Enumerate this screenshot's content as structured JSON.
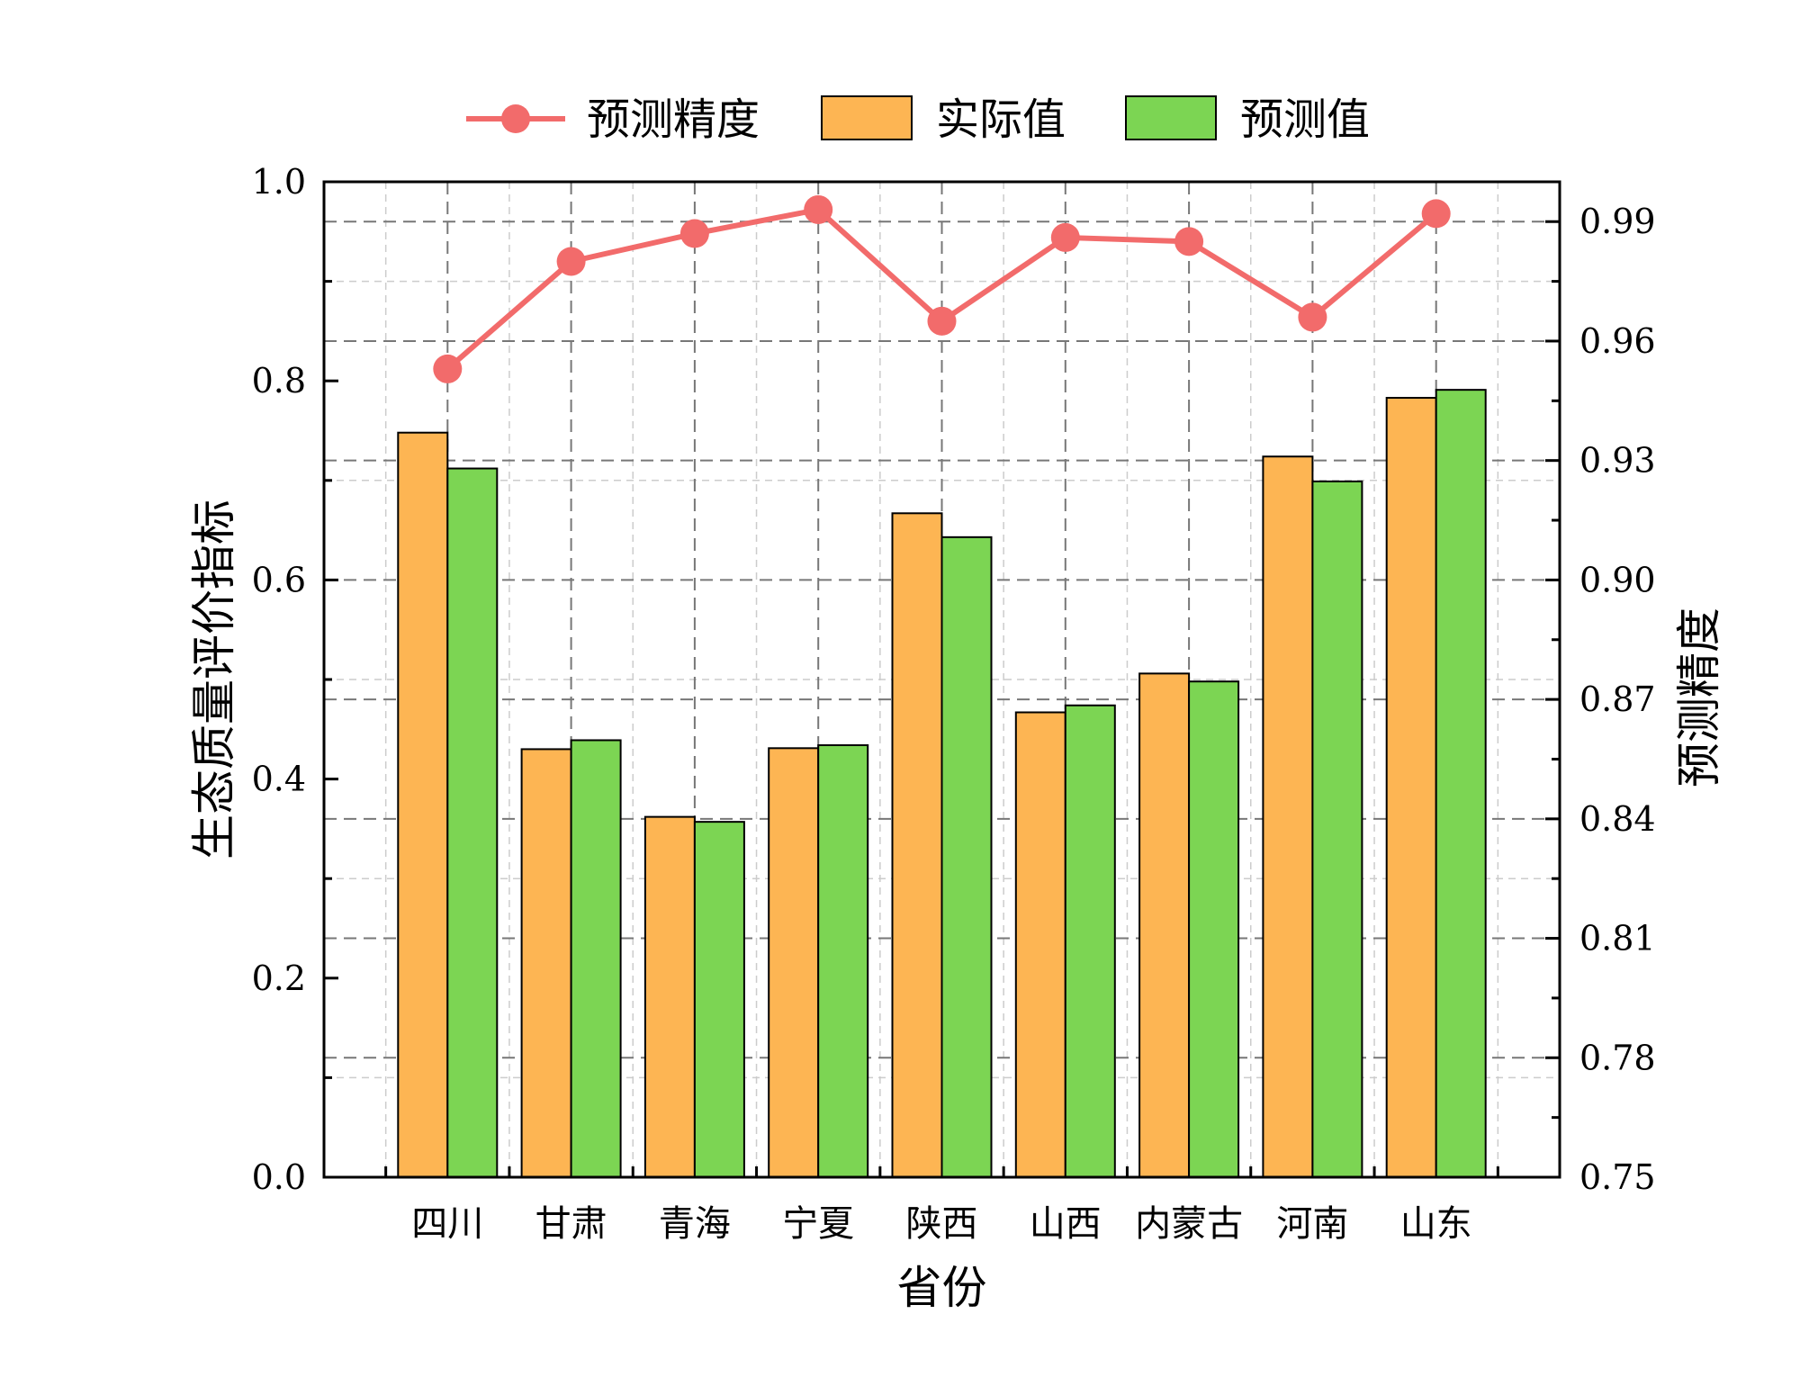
{
  "chart_data": {
    "type": "bar",
    "categories": [
      "四川",
      "甘肃",
      "青海",
      "宁夏",
      "陕西",
      "山西",
      "内蒙古",
      "河南",
      "山东"
    ],
    "xlabel": "省份",
    "ylabel": "生态质量评价指标",
    "y2label": "预测精度",
    "ylim": [
      0,
      1.0
    ],
    "y2lim": [
      0.75,
      1.0
    ],
    "yticks": [
      "0.0",
      "0.2",
      "0.4",
      "0.6",
      "0.8",
      "1.0"
    ],
    "y2ticks": [
      "0.75",
      "0.78",
      "0.81",
      "0.84",
      "0.87",
      "0.90",
      "0.93",
      "0.96",
      "0.99"
    ],
    "series": [
      {
        "name": "实际值",
        "kind": "bar",
        "color": "#FDB553",
        "values": [
          0.748,
          0.43,
          0.362,
          0.431,
          0.667,
          0.467,
          0.506,
          0.724,
          0.783
        ]
      },
      {
        "name": "预测值",
        "kind": "bar",
        "color": "#7CD553",
        "values": [
          0.712,
          0.439,
          0.357,
          0.434,
          0.643,
          0.474,
          0.498,
          0.699,
          0.791
        ]
      },
      {
        "name": "预测精度",
        "kind": "line",
        "axis": "right",
        "color": "#F26B6B",
        "values": [
          0.953,
          0.98,
          0.987,
          0.993,
          0.965,
          0.986,
          0.985,
          0.966,
          0.992
        ]
      }
    ],
    "legend": {
      "position": "top",
      "items": [
        "预测精度",
        "实际值",
        "预测值"
      ]
    },
    "grid": true
  }
}
